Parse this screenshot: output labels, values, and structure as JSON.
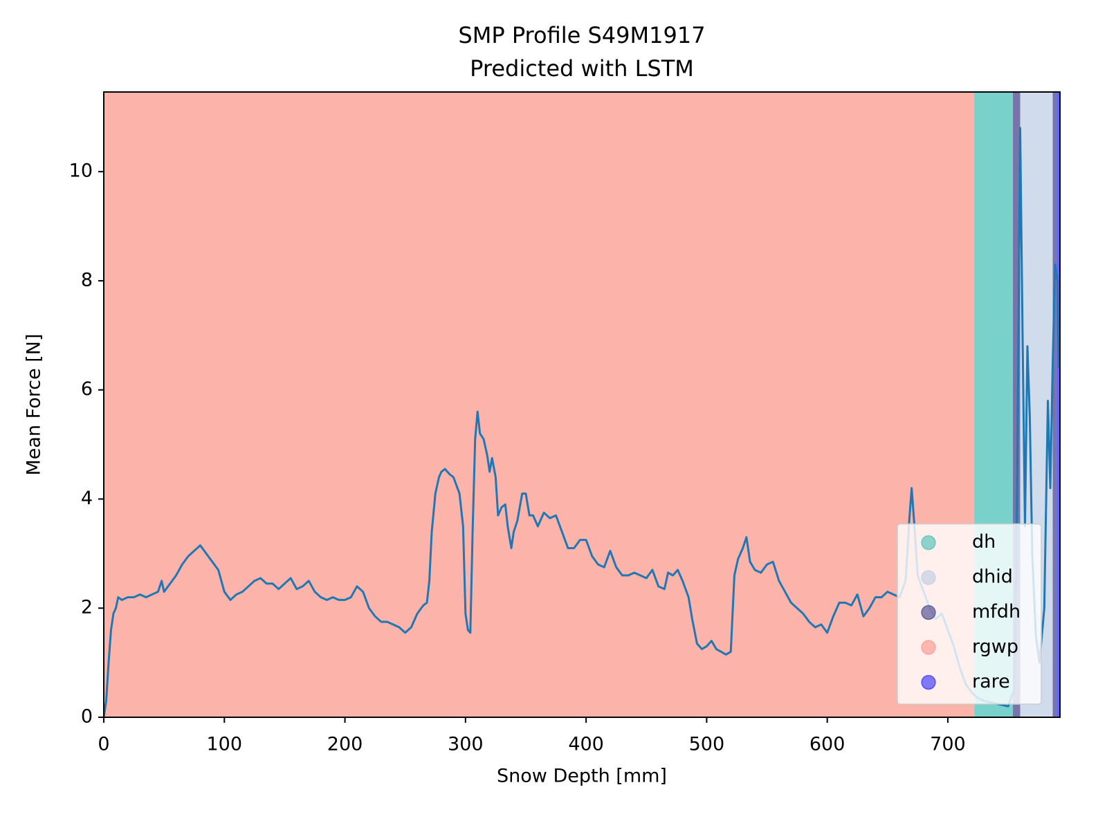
{
  "chart_data": {
    "type": "line",
    "title": "SMP Profile S49M1917",
    "subtitle": "Predicted with LSTM",
    "x_label": "Snow Depth [mm]",
    "y_label": "Mean Force [N]",
    "xlim": [
      0,
      793
    ],
    "xticks": [
      0,
      100,
      200,
      300,
      400,
      500,
      600,
      700
    ],
    "ylim": [
      0,
      11.46
    ],
    "yticks": [
      0,
      2,
      4,
      6,
      8,
      10
    ],
    "legend_position": "lower right",
    "legend": [
      {
        "name": "dh",
        "color": "#20b2aa"
      },
      {
        "name": "dhid",
        "color": "#b0c4de"
      },
      {
        "name": "mfdh",
        "color": "#191970"
      },
      {
        "name": "rgwp",
        "color": "#fa8072"
      },
      {
        "name": "rare",
        "color": "#0000ff"
      }
    ],
    "segments": [
      {
        "grain": "rgwp",
        "start": 0,
        "end": 722
      },
      {
        "grain": "dh",
        "start": 722,
        "end": 754
      },
      {
        "grain": "mfdh",
        "start": 754,
        "end": 760
      },
      {
        "grain": "dhid",
        "start": 760,
        "end": 787
      },
      {
        "grain": "mfdh",
        "start": 787,
        "end": 790
      },
      {
        "grain": "rare",
        "start": 790,
        "end": 793
      }
    ],
    "series": [
      {
        "color": "#1f77b4",
        "x": [
          0,
          2,
          4,
          6,
          8,
          10,
          12,
          15,
          20,
          25,
          30,
          35,
          40,
          45,
          48,
          50,
          55,
          60,
          65,
          70,
          75,
          80,
          85,
          90,
          95,
          100,
          105,
          110,
          115,
          120,
          125,
          130,
          135,
          140,
          145,
          150,
          155,
          160,
          165,
          170,
          175,
          180,
          185,
          190,
          195,
          200,
          205,
          210,
          215,
          220,
          225,
          230,
          235,
          240,
          245,
          250,
          255,
          260,
          265,
          268,
          270,
          272,
          275,
          278,
          280,
          283,
          287,
          290,
          295,
          298,
          300,
          302,
          304,
          306,
          308,
          310,
          312,
          315,
          318,
          320,
          322,
          325,
          327,
          330,
          333,
          335,
          338,
          340,
          343,
          347,
          350,
          353,
          356,
          360,
          365,
          370,
          375,
          380,
          385,
          390,
          395,
          400,
          405,
          410,
          415,
          420,
          425,
          430,
          435,
          440,
          445,
          450,
          455,
          460,
          465,
          468,
          472,
          476,
          480,
          485,
          488,
          492,
          496,
          500,
          504,
          508,
          512,
          516,
          520,
          523,
          526,
          530,
          533,
          536,
          540,
          545,
          550,
          555,
          560,
          565,
          570,
          575,
          580,
          585,
          590,
          595,
          600,
          605,
          610,
          615,
          620,
          625,
          630,
          635,
          640,
          645,
          650,
          655,
          660,
          665,
          668,
          670,
          672,
          675,
          680,
          685,
          690,
          695,
          700,
          705,
          710,
          715,
          720,
          725,
          730,
          740,
          750,
          755,
          757,
          759,
          760,
          762,
          764,
          766,
          768,
          770,
          773,
          776,
          780,
          783,
          785,
          787,
          789,
          791,
          792
        ],
        "values": [
          0,
          0.3,
          1.0,
          1.6,
          1.9,
          2.0,
          2.2,
          2.15,
          2.2,
          2.2,
          2.25,
          2.2,
          2.25,
          2.3,
          2.5,
          2.3,
          2.45,
          2.6,
          2.8,
          2.95,
          3.05,
          3.15,
          3.0,
          2.85,
          2.7,
          2.3,
          2.15,
          2.25,
          2.3,
          2.4,
          2.5,
          2.55,
          2.45,
          2.45,
          2.35,
          2.45,
          2.55,
          2.35,
          2.4,
          2.5,
          2.3,
          2.2,
          2.15,
          2.2,
          2.15,
          2.15,
          2.2,
          2.4,
          2.3,
          2.0,
          1.85,
          1.75,
          1.75,
          1.7,
          1.65,
          1.55,
          1.65,
          1.9,
          2.05,
          2.1,
          2.5,
          3.4,
          4.1,
          4.4,
          4.5,
          4.55,
          4.45,
          4.4,
          4.1,
          3.5,
          1.9,
          1.6,
          1.55,
          3.5,
          5.1,
          5.6,
          5.2,
          5.1,
          4.8,
          4.5,
          4.75,
          4.4,
          3.7,
          3.85,
          3.9,
          3.5,
          3.1,
          3.4,
          3.6,
          4.1,
          4.1,
          3.7,
          3.7,
          3.5,
          3.75,
          3.65,
          3.7,
          3.4,
          3.1,
          3.1,
          3.25,
          3.25,
          2.95,
          2.8,
          2.75,
          3.05,
          2.75,
          2.6,
          2.6,
          2.65,
          2.6,
          2.55,
          2.7,
          2.4,
          2.35,
          2.65,
          2.6,
          2.7,
          2.5,
          2.2,
          1.8,
          1.35,
          1.25,
          1.3,
          1.4,
          1.25,
          1.2,
          1.15,
          1.2,
          2.6,
          2.9,
          3.1,
          3.3,
          2.85,
          2.7,
          2.65,
          2.8,
          2.85,
          2.5,
          2.3,
          2.1,
          2.0,
          1.9,
          1.75,
          1.65,
          1.7,
          1.55,
          1.85,
          2.1,
          2.1,
          2.05,
          2.25,
          1.85,
          2.0,
          2.2,
          2.2,
          2.3,
          2.25,
          2.2,
          2.5,
          3.6,
          4.2,
          3.6,
          2.6,
          2.3,
          2.0,
          1.8,
          1.9,
          1.6,
          1.3,
          0.9,
          0.6,
          0.45,
          0.35,
          0.3,
          0.25,
          0.2,
          0.5,
          3.0,
          8.0,
          10.8,
          7.0,
          3.5,
          6.8,
          5.5,
          3.0,
          1.5,
          1.0,
          2.0,
          5.8,
          4.2,
          6.5,
          8.3,
          8.0,
          6.4
        ]
      }
    ]
  }
}
